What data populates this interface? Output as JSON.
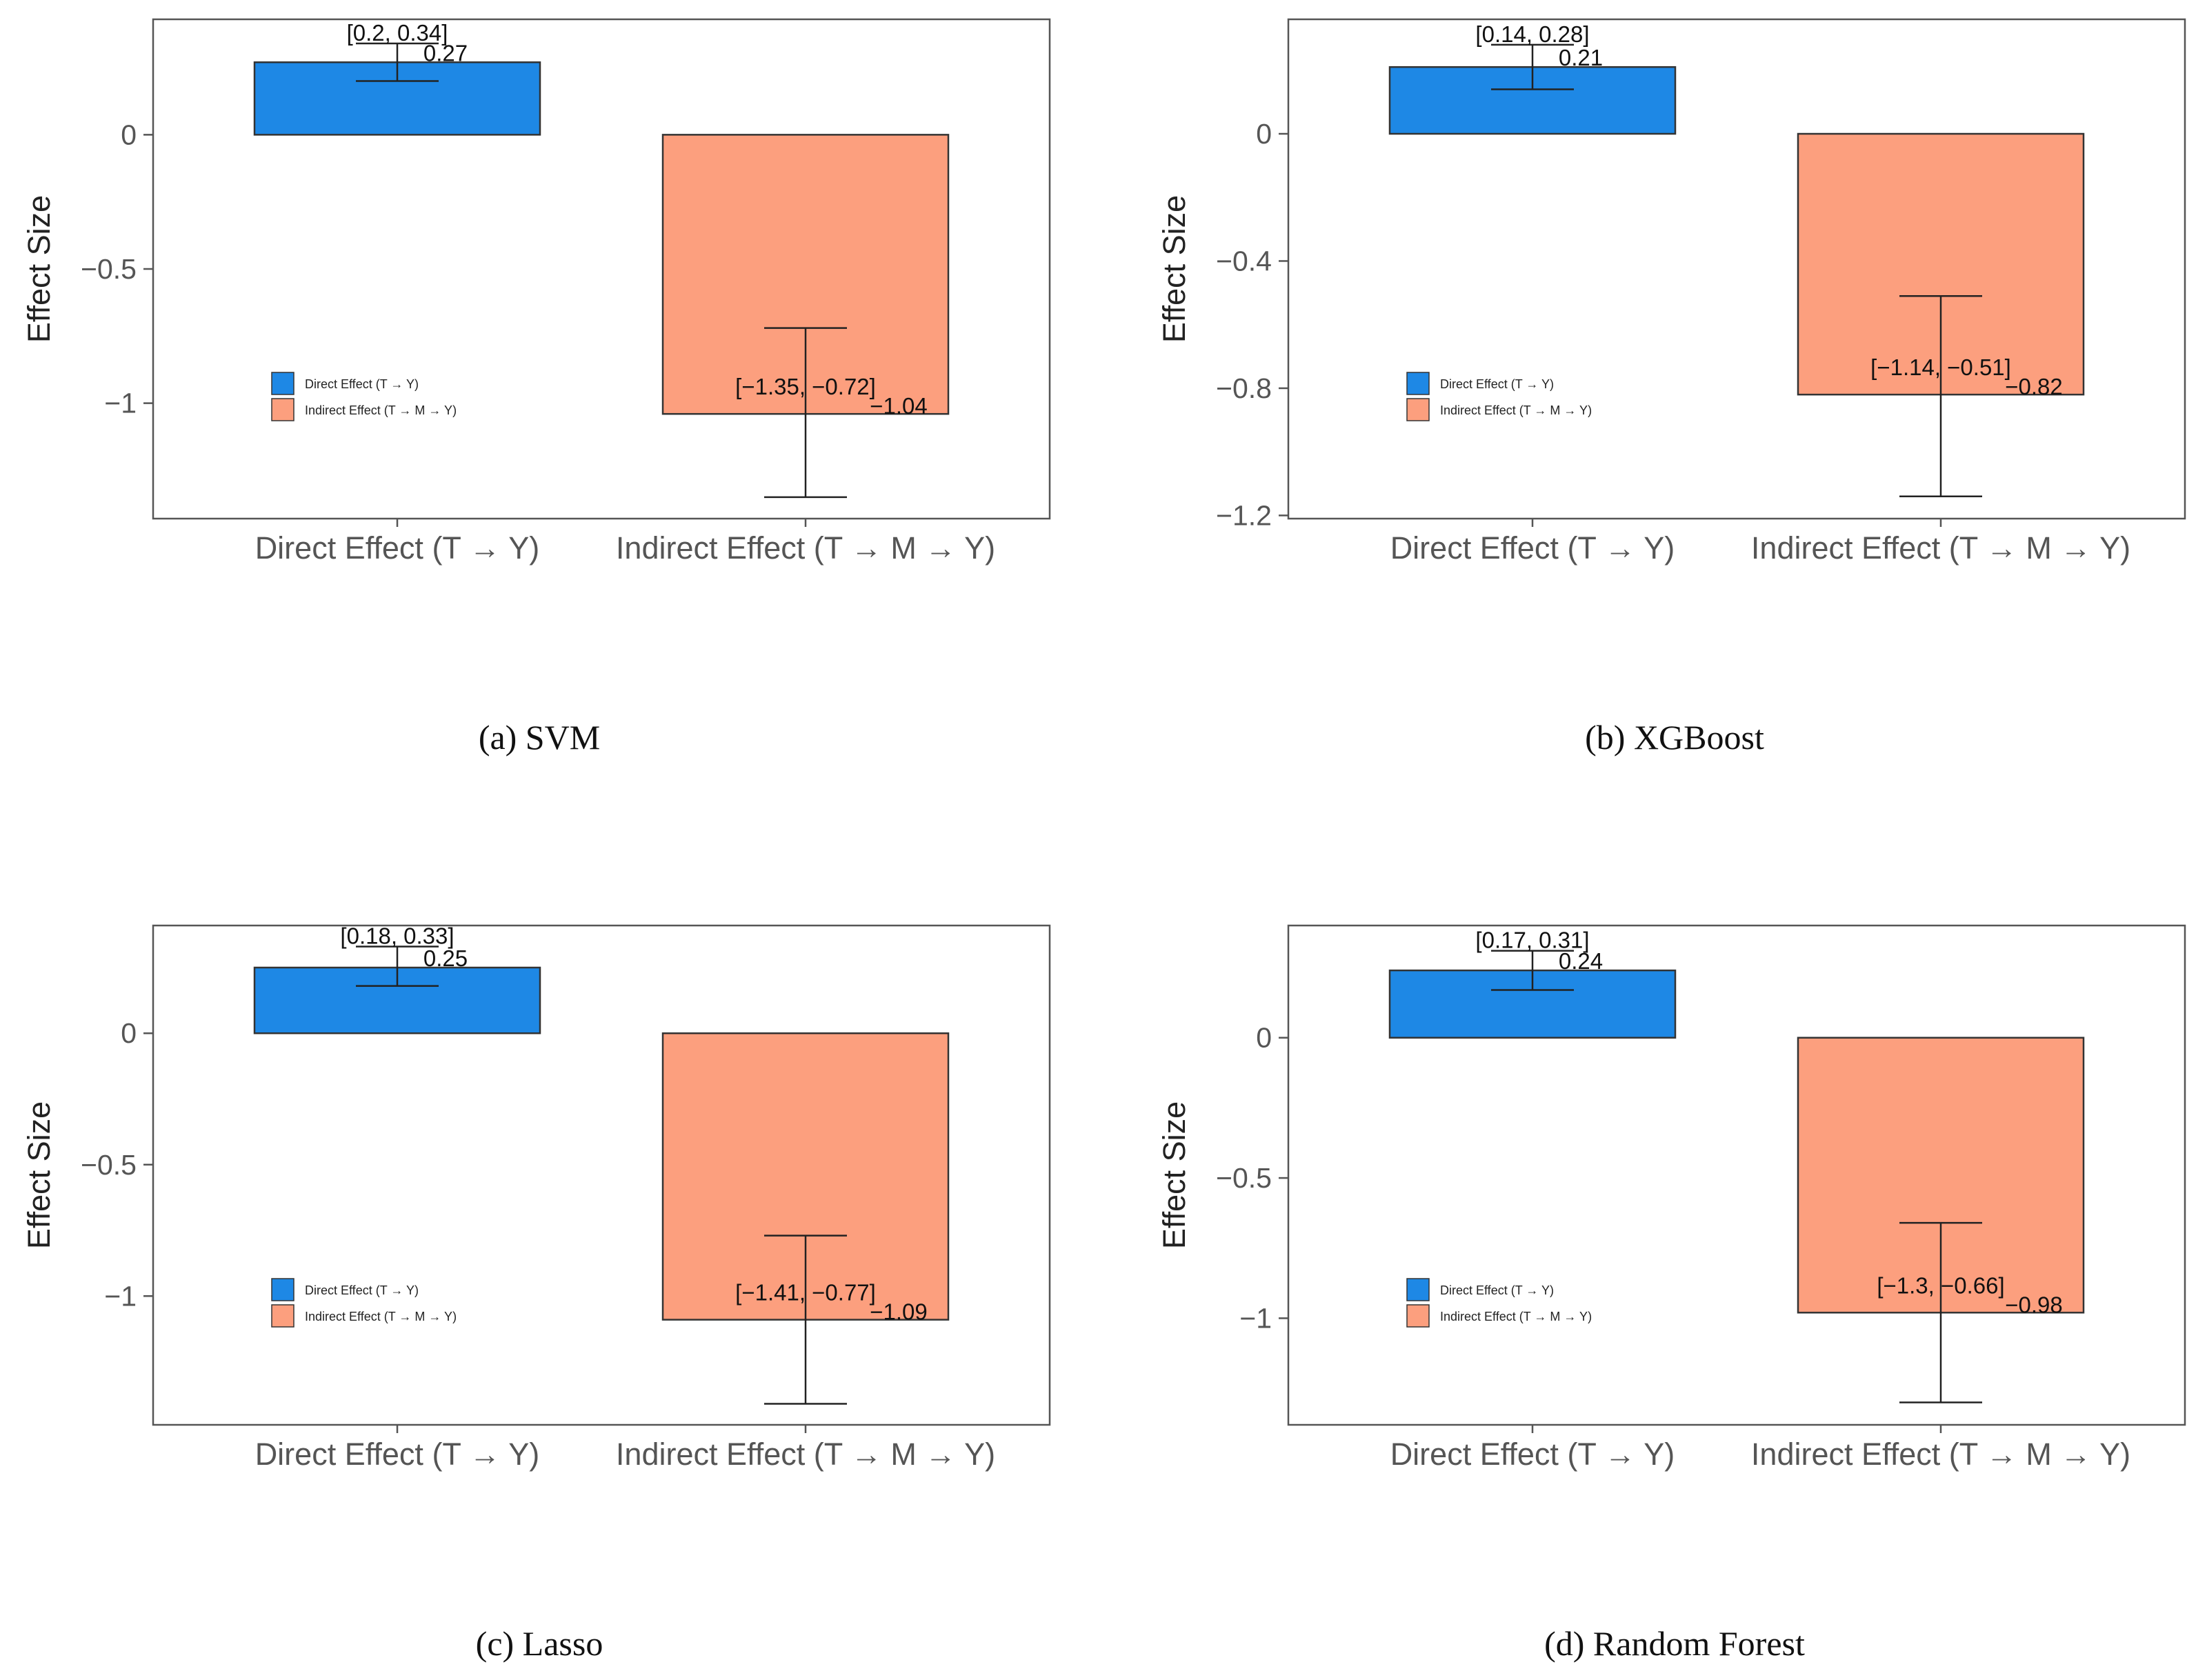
{
  "colors": {
    "direct": "#1e88e5",
    "indirect": "#fc9f7e",
    "frame": "#555555",
    "errorbar": "#222222"
  },
  "chart_data": [
    {
      "type": "bar",
      "caption": "(a) SVM",
      "ylabel": "Effect Size",
      "ylim": [
        -1.43,
        0.43
      ],
      "yticks": [
        0,
        -0.5,
        -1
      ],
      "ytick_labels": [
        "0",
        "−0.5",
        "−1"
      ],
      "categories": [
        "Direct Effect (T → Y)",
        "Indirect Effect (T → M → Y)"
      ],
      "values": [
        0.27,
        -1.04
      ],
      "value_labels": [
        "0.27",
        "−1.04"
      ],
      "ci": [
        [
          0.2,
          0.34
        ],
        [
          -1.35,
          -0.72
        ]
      ],
      "ci_labels": [
        "[0.2, 0.34]",
        "[−1.35, −0.72]"
      ],
      "legend": [
        "Direct Effect (T → Y)",
        "Indirect Effect (T → M → Y)"
      ]
    },
    {
      "type": "bar",
      "caption": "(b) XGBoost",
      "ylabel": "Effect Size",
      "ylim": [
        -1.21,
        0.36
      ],
      "yticks": [
        0,
        -0.4,
        -0.8,
        -1.2
      ],
      "ytick_labels": [
        "0",
        "−0.4",
        "−0.8",
        "−1.2"
      ],
      "categories": [
        "Direct Effect (T → Y)",
        "Indirect Effect (T → M → Y)"
      ],
      "values": [
        0.21,
        -0.82
      ],
      "value_labels": [
        "0.21",
        "−0.82"
      ],
      "ci": [
        [
          0.14,
          0.28
        ],
        [
          -1.14,
          -0.51
        ]
      ],
      "ci_labels": [
        "[0.14, 0.28]",
        "[−1.14, −0.51]"
      ],
      "legend": [
        "Direct Effect (T → Y)",
        "Indirect Effect (T → M → Y)"
      ]
    },
    {
      "type": "bar",
      "caption": "(c) Lasso",
      "ylabel": "Effect Size",
      "ylim": [
        -1.49,
        0.41
      ],
      "yticks": [
        0,
        -0.5,
        -1
      ],
      "ytick_labels": [
        "0",
        "−0.5",
        "−1"
      ],
      "categories": [
        "Direct Effect (T → Y)",
        "Indirect Effect (T → M → Y)"
      ],
      "values": [
        0.25,
        -1.09
      ],
      "value_labels": [
        "0.25",
        "−1.09"
      ],
      "ci": [
        [
          0.18,
          0.33
        ],
        [
          -1.41,
          -0.77
        ]
      ],
      "ci_labels": [
        "[0.18, 0.33]",
        "[−1.41, −0.77]"
      ],
      "legend": [
        "Direct Effect (T → Y)",
        "Indirect Effect (T → M → Y)"
      ]
    },
    {
      "type": "bar",
      "caption": "(d) Random Forest",
      "ylabel": "Effect Size",
      "ylim": [
        -1.38,
        0.4
      ],
      "yticks": [
        0,
        -0.5,
        -1
      ],
      "ytick_labels": [
        "0",
        "−0.5",
        "−1"
      ],
      "categories": [
        "Direct Effect (T → Y)",
        "Indirect Effect (T → M → Y)"
      ],
      "values": [
        0.24,
        -0.98
      ],
      "value_labels": [
        "0.24",
        "−0.98"
      ],
      "ci": [
        [
          0.17,
          0.31
        ],
        [
          -1.3,
          -0.66
        ]
      ],
      "ci_labels": [
        "[0.17, 0.31]",
        "[−1.3, −0.66]"
      ],
      "legend": [
        "Direct Effect (T → Y)",
        "Indirect Effect (T → M → Y)"
      ]
    }
  ]
}
